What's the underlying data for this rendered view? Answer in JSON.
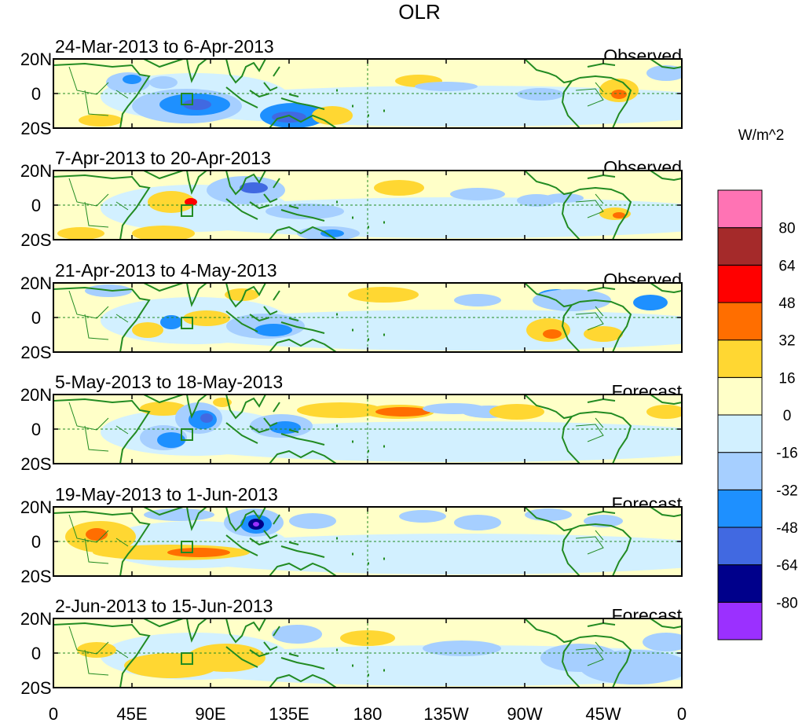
{
  "chart_data": {
    "type": "heatmap",
    "title": "OLR",
    "units_label": "W/m^2",
    "y_ticks": [
      "20N",
      "0",
      "20S"
    ],
    "x_ticks": [
      "0",
      "45E",
      "90E",
      "135E",
      "180",
      "135W",
      "90W",
      "45W",
      "0"
    ],
    "colorbar": {
      "levels": [
        "-80",
        "-64",
        "-48",
        "-32",
        "-16",
        "0",
        "16",
        "32",
        "48",
        "64",
        "80"
      ],
      "colors": [
        "#9b30ff",
        "#00008b",
        "#4169e1",
        "#1e90ff",
        "#a6cfff",
        "#d2f0ff",
        "#ffffc8",
        "#ffd732",
        "#ff6e00",
        "#ff0000",
        "#a52a2a",
        "#ff73b4"
      ]
    },
    "panels": [
      {
        "period": "24-Mar-2013 to 6-Apr-2013",
        "status": "Observed"
      },
      {
        "period": "7-Apr-2013 to 20-Apr-2013",
        "status": "Observed"
      },
      {
        "period": "21-Apr-2013 to 4-May-2013",
        "status": "Observed"
      },
      {
        "period": "5-May-2013 to 18-May-2013",
        "status": "Forecast"
      },
      {
        "period": "19-May-2013 to 1-Jun-2013",
        "status": "Forecast"
      },
      {
        "period": "2-Jun-2013 to 15-Jun-2013",
        "status": "Forecast"
      }
    ]
  }
}
